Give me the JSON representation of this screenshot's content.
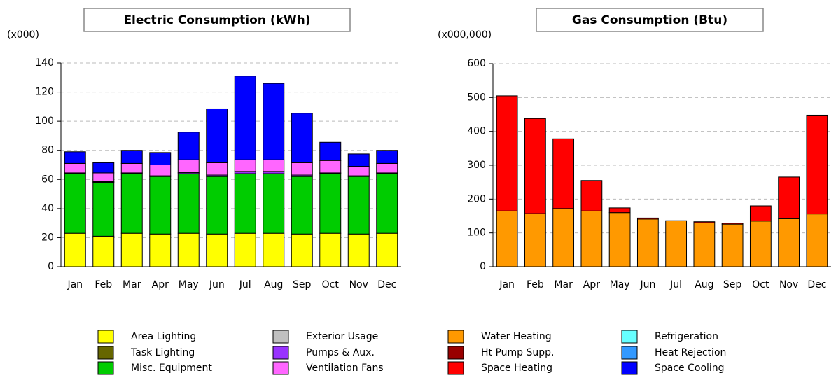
{
  "chart_data": [
    {
      "type": "stacked_bar",
      "title": "Electric Consumption (kWh)",
      "unit_label": "(x000)",
      "categories": [
        "Jan",
        "Feb",
        "Mar",
        "Apr",
        "May",
        "Jun",
        "Jul",
        "Aug",
        "Sep",
        "Oct",
        "Nov",
        "Dec"
      ],
      "ylim": [
        0,
        140
      ],
      "yticks": [
        0,
        20,
        40,
        60,
        80,
        100,
        120,
        140
      ],
      "grid": true,
      "series": [
        {
          "name": "Area Lighting",
          "color": "#ffff00",
          "values": [
            23,
            21,
            23,
            22.5,
            23,
            22.5,
            23,
            23,
            22.5,
            23,
            22.5,
            23
          ]
        },
        {
          "name": "Misc. Equipment",
          "color": "#00cc00",
          "values": [
            41,
            37,
            41,
            39.5,
            41,
            39.5,
            41,
            41,
            39.5,
            41,
            39.5,
            41
          ]
        },
        {
          "name": "Pumps & Aux.",
          "color": "#9933ff",
          "values": [
            0.5,
            0.5,
            0.5,
            0.5,
            0.8,
            1,
            1.5,
            1.5,
            1,
            0.5,
            0.5,
            0.5
          ]
        },
        {
          "name": "Ventilation Fans",
          "color": "#ff66ff",
          "values": [
            6.5,
            6,
            6.5,
            7.5,
            8.7,
            8.5,
            8,
            8,
            8.5,
            8.5,
            6.5,
            6.5
          ]
        },
        {
          "name": "Space Cooling",
          "color": "#0000ff",
          "values": [
            8,
            7,
            9,
            8.5,
            19,
            37,
            57.5,
            52.5,
            34,
            12.5,
            8.5,
            9
          ]
        }
      ]
    },
    {
      "type": "stacked_bar",
      "title": "Gas Consumption (Btu)",
      "unit_label": "(x000,000)",
      "categories": [
        "Jan",
        "Feb",
        "Mar",
        "Apr",
        "May",
        "Jun",
        "Jul",
        "Aug",
        "Sep",
        "Oct",
        "Nov",
        "Dec"
      ],
      "ylim": [
        0,
        600
      ],
      "yticks": [
        0,
        100,
        200,
        300,
        400,
        500,
        600
      ],
      "grid": true,
      "series": [
        {
          "name": "Water Heating",
          "color": "#ff9900",
          "values": [
            165,
            157,
            172,
            165,
            160,
            141,
            136,
            130,
            126,
            135,
            142,
            156
          ]
        },
        {
          "name": "Space Heating",
          "color": "#ff0000",
          "values": [
            340,
            281,
            206,
            90,
            14,
            3,
            0,
            3,
            3,
            45,
            123,
            292
          ]
        }
      ]
    }
  ],
  "legend": [
    {
      "name": "Area Lighting",
      "color": "#ffff00"
    },
    {
      "name": "Task Lighting",
      "color": "#666600"
    },
    {
      "name": "Misc. Equipment",
      "color": "#00cc00"
    },
    {
      "name": "Exterior Usage",
      "color": "#c0c0c0"
    },
    {
      "name": "Pumps & Aux.",
      "color": "#9933ff"
    },
    {
      "name": "Ventilation Fans",
      "color": "#ff66ff"
    },
    {
      "name": "Water Heating",
      "color": "#ff9900"
    },
    {
      "name": "Ht Pump Supp.",
      "color": "#990000"
    },
    {
      "name": "Space Heating",
      "color": "#ff0000"
    },
    {
      "name": "Refrigeration",
      "color": "#66ffff"
    },
    {
      "name": "Heat Rejection",
      "color": "#3399ff"
    },
    {
      "name": "Space Cooling",
      "color": "#0000ff"
    }
  ]
}
